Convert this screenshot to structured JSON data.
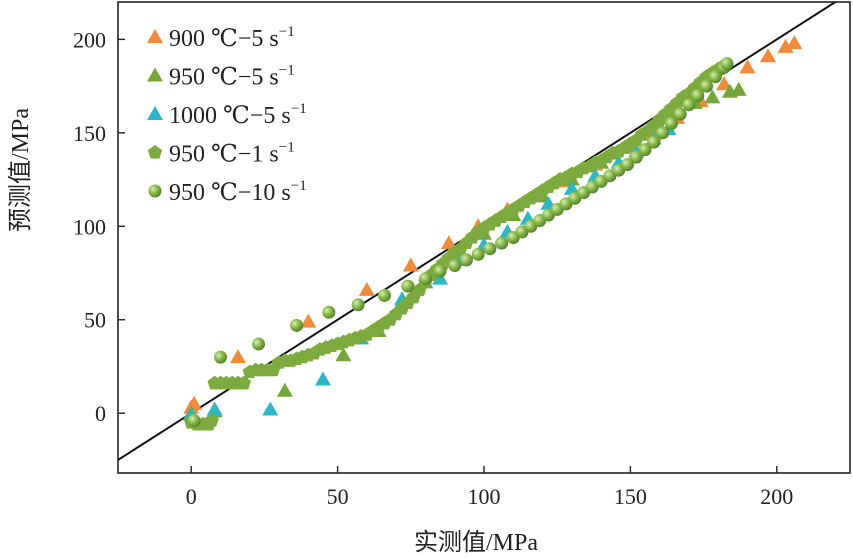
{
  "chart_data": {
    "type": "scatter",
    "title": "",
    "xlabel": "实测值/MPa",
    "ylabel": "预测值/MPa",
    "xlim": [
      -25,
      225
    ],
    "ylim": [
      -32,
      220
    ],
    "x_ticks": [
      "0",
      "50",
      "100",
      "150",
      "200"
    ],
    "y_ticks": [
      "0",
      "50",
      "100",
      "150",
      "200"
    ],
    "grid": false,
    "legend_position": "top-left",
    "reference_line": {
      "label": "",
      "slope": 1,
      "intercept": 0
    },
    "series": [
      {
        "name": "900 ℃−5 s−1",
        "legend": {
          "main": "900 ℃−5 s",
          "sup": "−1"
        },
        "marker": "triangle",
        "color": "#F08A3C",
        "x": [
          0,
          1,
          16,
          40,
          60,
          75,
          88,
          98,
          108,
          118,
          128,
          138,
          148,
          158,
          166,
          174,
          182,
          190,
          197,
          203,
          206
        ],
        "y": [
          3,
          5,
          30,
          49,
          66,
          79,
          91,
          100,
          109,
          116,
          124,
          133,
          142,
          149,
          158,
          167,
          176,
          185,
          191,
          196,
          198
        ]
      },
      {
        "name": "950 ℃−5 s−1",
        "legend": {
          "main": "950 ℃−5 s",
          "sup": "−1"
        },
        "marker": "triangle",
        "color": "#74A63C",
        "x": [
          0,
          8,
          32,
          52,
          64,
          72,
          80,
          90,
          100,
          110,
          120,
          130,
          140,
          150,
          160,
          166,
          172,
          178,
          184,
          187
        ],
        "y": [
          0,
          1,
          12,
          31,
          44,
          59,
          70,
          84,
          96,
          106,
          116,
          125,
          134,
          143,
          153,
          161,
          166,
          169,
          172,
          173
        ]
      },
      {
        "name": "1000 ℃−5 s−1",
        "legend": {
          "main": "1000 ℃−5 s",
          "sup": "−1"
        },
        "marker": "triangle",
        "color": "#2EB5C6",
        "x": [
          0,
          8,
          27,
          45,
          58,
          72,
          85,
          92,
          100,
          108,
          115,
          122,
          130,
          138,
          146,
          152,
          158,
          163
        ],
        "y": [
          -1,
          2,
          2,
          18,
          40,
          61,
          72,
          82,
          90,
          97,
          104,
          112,
          120,
          127,
          134,
          140,
          147,
          152
        ]
      },
      {
        "name": "950 ℃−1 s−1",
        "legend": {
          "main": "950 ℃−1 s",
          "sup": "−1"
        },
        "marker": "pentagon",
        "color": "#7CAA3E",
        "x": [
          0,
          2,
          4,
          6,
          7,
          8,
          10,
          12,
          14,
          16,
          18,
          20,
          22,
          24,
          26,
          28,
          30,
          32,
          34,
          36,
          38,
          40,
          42,
          44,
          46,
          48,
          50,
          52,
          54,
          56,
          58,
          60,
          62,
          64,
          66,
          68,
          70,
          72,
          74,
          76,
          78,
          80,
          82,
          84,
          86,
          88,
          90,
          92,
          94,
          96,
          98,
          100,
          102,
          104,
          106,
          108,
          110,
          112,
          114,
          116,
          118,
          120,
          122,
          124,
          126,
          128,
          130,
          132,
          134,
          136,
          138,
          140,
          142,
          144,
          146,
          148,
          150,
          152,
          154,
          156,
          158,
          160,
          162,
          164,
          166,
          168,
          170,
          172,
          174,
          176,
          178,
          180,
          182
        ],
        "y": [
          -5,
          -6,
          -6,
          -6,
          -4,
          16,
          16,
          16,
          16,
          16,
          16,
          22,
          23,
          23,
          23,
          23,
          27,
          28,
          28,
          29,
          30,
          31,
          32,
          34,
          35,
          36,
          37,
          38,
          39,
          40,
          41,
          42,
          44,
          46,
          48,
          50,
          53,
          56,
          59,
          62,
          66,
          70,
          74,
          77,
          80,
          83,
          86,
          88,
          91,
          94,
          97,
          99,
          101,
          103,
          105,
          107,
          109,
          111,
          113,
          115,
          117,
          119,
          121,
          123,
          125,
          126,
          128,
          129,
          131,
          132,
          134,
          135,
          137,
          139,
          140,
          142,
          144,
          146,
          149,
          151,
          154,
          157,
          160,
          163,
          166,
          169,
          171,
          174,
          177,
          180,
          182,
          184,
          186
        ]
      },
      {
        "name": "950 ℃−10 s−1",
        "legend": {
          "main": "950 ℃−10 s",
          "sup": "−1"
        },
        "marker": "sphere",
        "color": "#6E9E36",
        "x": [
          1,
          10,
          23,
          36,
          47,
          57,
          66,
          74,
          80,
          85,
          90,
          94,
          98,
          102,
          106,
          110,
          113,
          116,
          119,
          122,
          125,
          128,
          131,
          134,
          137,
          140,
          143,
          146,
          149,
          152,
          155,
          158,
          161,
          164,
          167,
          170,
          173,
          176,
          179,
          182,
          183
        ],
        "y": [
          -4,
          30,
          37,
          47,
          54,
          58,
          63,
          68,
          72,
          76,
          79,
          82,
          85,
          88,
          91,
          94,
          97,
          100,
          103,
          106,
          109,
          112,
          115,
          118,
          121,
          124,
          127,
          130,
          133,
          137,
          141,
          145,
          150,
          155,
          160,
          165,
          170,
          175,
          180,
          185,
          187
        ]
      }
    ]
  }
}
